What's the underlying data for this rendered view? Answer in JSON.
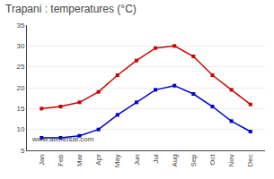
{
  "chart_data": {
    "type": "line",
    "title": "Trapani : temperatures (°C)",
    "categories": [
      "Jan",
      "Feb",
      "Mar",
      "Apr",
      "May",
      "Jun",
      "Jul",
      "Aug",
      "Sep",
      "Oct",
      "Nov",
      "Dec"
    ],
    "series": [
      {
        "color": "#cc0000",
        "marker": "square",
        "line_style": "solid",
        "values": [
          15,
          15.5,
          16.5,
          19,
          23,
          26.5,
          29.5,
          30,
          27.5,
          23,
          19.5,
          16
        ]
      },
      {
        "color": "#0000cc",
        "marker": "square",
        "line_style": "solid",
        "values": [
          8,
          8,
          8.5,
          10,
          13.5,
          16.5,
          19.5,
          20.5,
          18.5,
          15.5,
          12,
          9.5
        ]
      }
    ],
    "ylim": [
      5,
      35
    ],
    "yticks": [
      5,
      10,
      15,
      20,
      25,
      30,
      35
    ],
    "grid": true,
    "annotations": [
      "www.allmetsat.com"
    ]
  }
}
